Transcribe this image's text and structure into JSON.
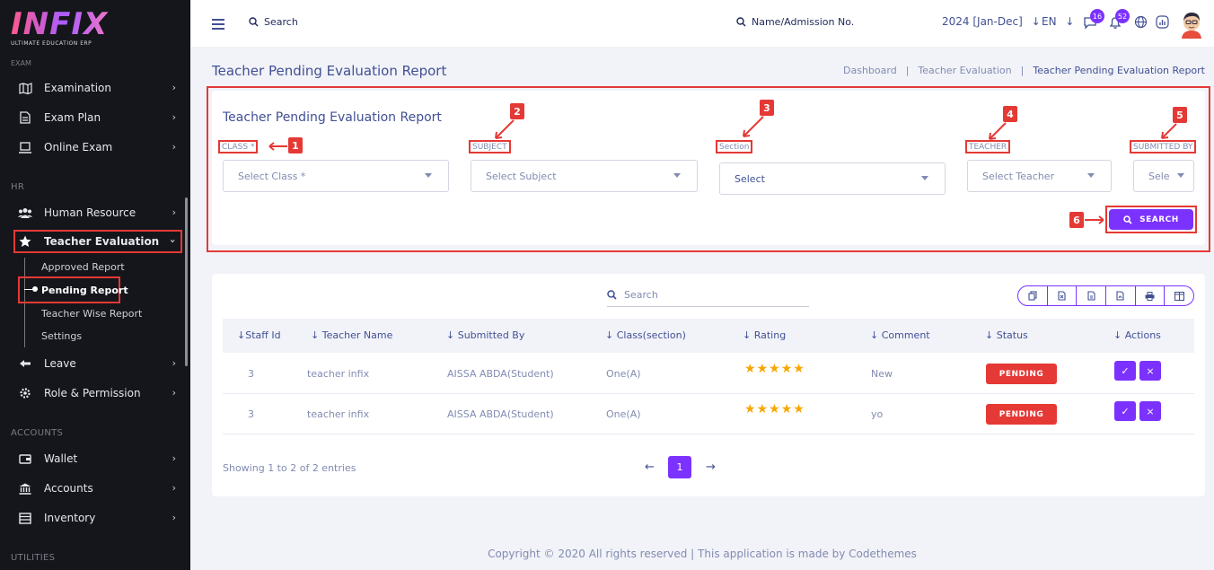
{
  "brand": {
    "logo_text": "INFIX",
    "tagline": "ULTIMATE EDUCATION ERP"
  },
  "sidebar": {
    "cut_label": "EXAM",
    "sections": {
      "hr": "HR",
      "accounts": "ACCOUNTS",
      "utilities": "UTILITIES"
    },
    "items": [
      {
        "label": "Examination",
        "icon": "map-icon"
      },
      {
        "label": "Exam Plan",
        "icon": "file-icon"
      },
      {
        "label": "Online Exam",
        "icon": "laptop-icon"
      },
      {
        "label": "Human Resource",
        "icon": "users-icon"
      },
      {
        "label": "Teacher Evaluation",
        "icon": "star-icon"
      },
      {
        "label": "Leave",
        "icon": "leave-icon"
      },
      {
        "label": "Role & Permission",
        "icon": "settings-icon"
      },
      {
        "label": "Wallet",
        "icon": "wallet-icon"
      },
      {
        "label": "Accounts",
        "icon": "bank-icon"
      },
      {
        "label": "Inventory",
        "icon": "inventory-icon"
      }
    ],
    "sub_items": [
      "Approved Report",
      "Pending Report",
      "Teacher Wise Report",
      "Settings"
    ]
  },
  "topbar": {
    "search_label": "Search",
    "admission_label": "Name/Admission No.",
    "year": "2024 [Jan-Dec]",
    "lang": "EN",
    "message_badge": "16",
    "notification_badge": "52"
  },
  "header": {
    "title": "Teacher Pending Evaluation Report",
    "breadcrumb": [
      "Dashboard",
      "|",
      "Teacher Evaluation",
      "|",
      "Teacher Pending Evaluation Report"
    ]
  },
  "filter": {
    "title": "Teacher Pending Evaluation Report",
    "fields": [
      {
        "label": "CLASS *",
        "placeholder": "Select Class *",
        "marker": "1"
      },
      {
        "label": "SUBJECT",
        "placeholder": "Select Subject",
        "marker": "2"
      },
      {
        "label": "Section",
        "placeholder": "Select",
        "marker": "3"
      },
      {
        "label": "TEACHER",
        "placeholder": "Select Teacher",
        "marker": "4"
      },
      {
        "label": "SUBMITTED BY",
        "placeholder": "Sele",
        "marker": "5"
      }
    ],
    "search_button": "SEARCH",
    "search_marker": "6"
  },
  "table": {
    "search_placeholder": "Search",
    "columns": [
      "Staff Id",
      "Teacher Name",
      "Submitted By",
      "Class(section)",
      "Rating",
      "Comment",
      "Status",
      "Actions"
    ],
    "rows": [
      {
        "staff_id": "3",
        "teacher": "teacher infix",
        "submitted_by": "AISSA ABDA(Student)",
        "class": "One(A)",
        "rating": 5,
        "comment": "New",
        "status": "PENDING"
      },
      {
        "staff_id": "3",
        "teacher": "teacher infix",
        "submitted_by": "AISSA ABDA(Student)",
        "class": "One(A)",
        "rating": 5,
        "comment": "yo",
        "status": "PENDING"
      }
    ],
    "showing": "Showing 1 to 2 of 2 entries",
    "page": "1"
  },
  "footer": "Copyright © 2020 All rights reserved | This application is made by Codethemes",
  "colors": {
    "accent": "#7c32ff",
    "danger": "#e53935",
    "sidebar": "#15161c",
    "star": "#f7a600"
  }
}
